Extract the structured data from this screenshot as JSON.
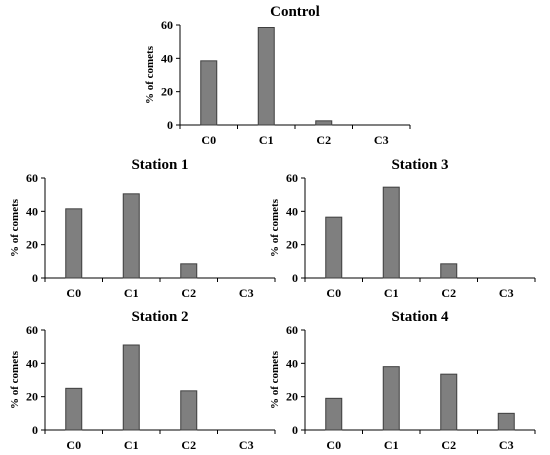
{
  "colors": {
    "bar_fill": "#7f7f7f",
    "bar_stroke": "#3f3f3f",
    "axis": "#000000"
  },
  "chart_data": [
    {
      "type": "bar",
      "title": "Control",
      "ylabel": "% of comets",
      "xlabel": "",
      "categories": [
        "C0",
        "C1",
        "C2",
        "C3"
      ],
      "values": [
        38.5,
        58.5,
        2.5,
        0
      ],
      "ylim": [
        0,
        60
      ],
      "yticks": [
        0,
        20,
        40,
        60
      ],
      "grid": false
    },
    {
      "type": "bar",
      "title": "Station 1",
      "ylabel": "% of comets",
      "xlabel": "",
      "categories": [
        "C0",
        "C1",
        "C2",
        "C3"
      ],
      "values": [
        41.5,
        50.5,
        8.5,
        0
      ],
      "ylim": [
        0,
        60
      ],
      "yticks": [
        0,
        20,
        40,
        60
      ],
      "grid": false
    },
    {
      "type": "bar",
      "title": "Station 3",
      "ylabel": "% of comets",
      "xlabel": "",
      "categories": [
        "C0",
        "C1",
        "C2",
        "C3"
      ],
      "values": [
        36.5,
        54.5,
        8.5,
        0
      ],
      "ylim": [
        0,
        60
      ],
      "yticks": [
        0,
        20,
        40,
        60
      ],
      "grid": false
    },
    {
      "type": "bar",
      "title": "Station 2",
      "ylabel": "% of comets",
      "xlabel": "",
      "categories": [
        "C0",
        "C1",
        "C2",
        "C3"
      ],
      "values": [
        25,
        51,
        23.5,
        0
      ],
      "ylim": [
        0,
        60
      ],
      "yticks": [
        0,
        20,
        40,
        60
      ],
      "grid": false
    },
    {
      "type": "bar",
      "title": "Station 4",
      "ylabel": "% of comets",
      "xlabel": "",
      "categories": [
        "C0",
        "C1",
        "C2",
        "C3"
      ],
      "values": [
        19,
        38,
        33.5,
        10
      ],
      "ylim": [
        0,
        60
      ],
      "yticks": [
        0,
        20,
        40,
        60
      ],
      "grid": false
    }
  ]
}
